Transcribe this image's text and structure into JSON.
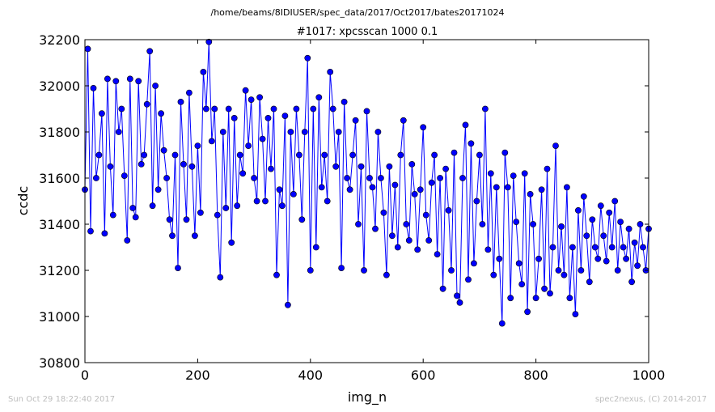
{
  "figure": {
    "suptitle": "/home/beams/8IDIUSER/spec_data/2017/Oct2017/bates20171024",
    "timestamp": "Sun Oct 29 18:22:40 2017",
    "credit": "spec2nexus, (C) 2014-2017"
  },
  "chart_data": {
    "type": "line",
    "title": "#1017: xpcsscan 1000 0.1",
    "xlabel": "img_n",
    "ylabel": "ccdc",
    "xlim": [
      0,
      1000
    ],
    "ylim": [
      30800,
      32200
    ],
    "xticks": [
      0,
      200,
      400,
      600,
      800,
      1000
    ],
    "yticks": [
      30800,
      31000,
      31200,
      31400,
      31600,
      31800,
      32000,
      32200
    ],
    "grid": false,
    "markers": "circle",
    "color": "#0000ff",
    "series": [
      {
        "x": [
          0,
          5,
          10,
          15,
          20,
          25,
          30,
          35,
          40,
          45,
          50,
          55,
          60,
          65,
          70,
          75,
          80,
          85,
          90,
          95,
          100,
          105,
          110,
          115,
          120,
          125,
          130,
          135,
          140,
          145,
          150,
          155,
          160,
          165,
          170,
          175,
          180,
          185,
          190,
          195,
          200,
          205,
          210,
          215,
          220,
          225,
          230,
          235,
          240,
          245,
          250,
          255,
          260,
          265,
          270,
          275,
          280,
          285,
          290,
          295,
          300,
          305,
          310,
          315,
          320,
          325,
          330,
          335,
          340,
          345,
          350,
          355,
          360,
          365,
          370,
          375,
          380,
          385,
          390,
          395,
          400,
          405,
          410,
          415,
          420,
          425,
          430,
          435,
          440,
          445,
          450,
          455,
          460,
          465,
          470,
          475,
          480,
          485,
          490,
          495,
          500,
          505,
          510,
          515,
          520,
          525,
          530,
          535,
          540,
          545,
          550,
          555,
          560,
          565,
          570,
          575,
          580,
          585,
          590,
          595,
          600,
          605,
          610,
          615,
          620,
          625,
          630,
          635,
          640,
          645,
          650,
          655,
          660,
          665,
          670,
          675,
          680,
          685,
          690,
          695,
          700,
          705,
          710,
          715,
          720,
          725,
          730,
          735,
          740,
          745,
          750,
          755,
          760,
          765,
          770,
          775,
          780,
          785,
          790,
          795,
          800,
          805,
          810,
          815,
          820,
          825,
          830,
          835,
          840,
          845,
          850,
          855,
          860,
          865,
          870,
          875,
          880,
          885,
          890,
          895,
          900,
          905,
          910,
          915,
          920,
          925,
          930,
          935,
          940,
          945,
          950,
          955,
          960,
          965,
          970,
          975,
          980,
          985,
          990,
          995,
          1000
        ],
        "values": [
          31550,
          32160,
          31370,
          31990,
          31600,
          31700,
          31880,
          31360,
          32030,
          31650,
          31440,
          32020,
          31800,
          31900,
          31610,
          31330,
          32030,
          31470,
          31430,
          32020,
          31660,
          31700,
          31920,
          32150,
          31480,
          32000,
          31550,
          31880,
          31720,
          31600,
          31420,
          31350,
          31700,
          31210,
          31930,
          31660,
          31420,
          31970,
          31650,
          31350,
          31740,
          31450,
          32060,
          31900,
          32190,
          31760,
          31900,
          31440,
          31170,
          31800,
          31470,
          31900,
          31320,
          31860,
          31480,
          31700,
          31620,
          31980,
          31740,
          31940,
          31600,
          31500,
          31950,
          31770,
          31500,
          31860,
          31640,
          31900,
          31180,
          31550,
          31480,
          31870,
          31050,
          31800,
          31530,
          31900,
          31700,
          31420,
          31800,
          32120,
          31200,
          31900,
          31300,
          31950,
          31560,
          31700,
          31500,
          32060,
          31900,
          31650,
          31800,
          31210,
          31930,
          31600,
          31550,
          31700,
          31850,
          31400,
          31650,
          31200,
          31890,
          31600,
          31560,
          31380,
          31800,
          31600,
          31450,
          31180,
          31650,
          31350,
          31570,
          31300,
          31700,
          31850,
          31400,
          31330,
          31660,
          31530,
          31290,
          31550,
          31820,
          31440,
          31330,
          31580,
          31700,
          31270,
          31600,
          31120,
          31640,
          31460,
          31200,
          31710,
          31090,
          31060,
          31600,
          31830,
          31160,
          31750,
          31230,
          31500,
          31700,
          31400,
          31900,
          31290,
          31620,
          31180,
          31560,
          31250,
          30970,
          31710,
          31560,
          31080,
          31610,
          31410,
          31230,
          31140,
          31620,
          31020,
          31530,
          31400,
          31080,
          31250,
          31550,
          31120,
          31640,
          31100,
          31300,
          31740,
          31200,
          31390,
          31180,
          31560,
          31080,
          31300,
          31010,
          31460,
          31200,
          31520,
          31350,
          31150,
          31420,
          31300,
          31250,
          31480,
          31350,
          31240,
          31450,
          31300,
          31500,
          31200,
          31410,
          31300,
          31250,
          31380,
          31150,
          31320,
          31220,
          31400,
          31300,
          31200,
          31380
        ]
      }
    ]
  }
}
